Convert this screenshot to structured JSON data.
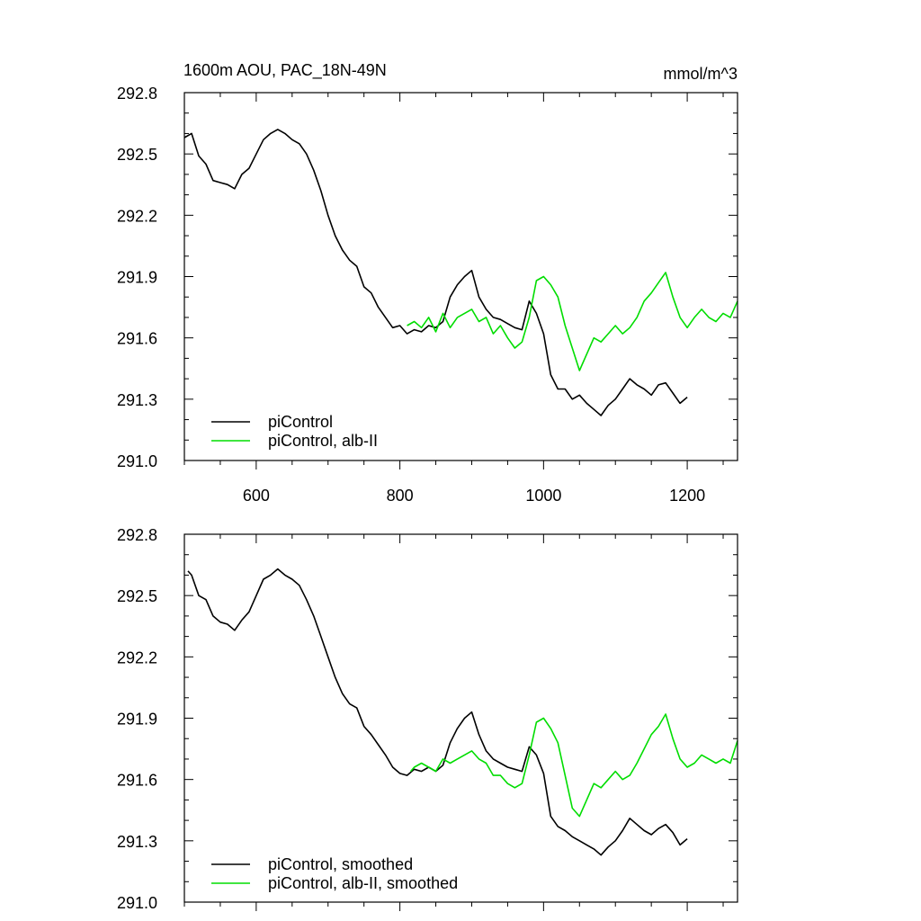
{
  "chart_data": [
    {
      "type": "line",
      "title": "1600m AOU, PAC_18N-49N",
      "units": "mmol/m^3",
      "xlim": [
        500,
        1270
      ],
      "ylim": [
        291.0,
        292.8
      ],
      "xticks": [
        600,
        800,
        1000,
        1200
      ],
      "xtick_labels": [
        "600",
        "800",
        "1000",
        "1200"
      ],
      "yticks": [
        291.0,
        291.3,
        291.6,
        291.9,
        292.2,
        292.5,
        292.8
      ],
      "ytick_labels": [
        "291.0",
        "291.3",
        "291.6",
        "291.9",
        "292.2",
        "292.5",
        "292.8"
      ],
      "legend": {
        "position": "bottom-left",
        "entries": [
          "piControl",
          "piControl, alb-II"
        ]
      },
      "series": [
        {
          "name": "piControl",
          "color": "#000000",
          "x": [
            500,
            510,
            520,
            530,
            540,
            550,
            560,
            570,
            580,
            590,
            600,
            610,
            620,
            630,
            640,
            650,
            660,
            670,
            680,
            690,
            700,
            710,
            720,
            730,
            740,
            750,
            760,
            770,
            780,
            790,
            800,
            810,
            820,
            830,
            840,
            850,
            860,
            870,
            880,
            890,
            900,
            910,
            920,
            930,
            940,
            950,
            960,
            970,
            980,
            990,
            1000,
            1010,
            1020,
            1030,
            1040,
            1050,
            1060,
            1070,
            1080,
            1090,
            1100,
            1110,
            1120,
            1130,
            1140,
            1150,
            1160,
            1170,
            1180,
            1190,
            1200
          ],
          "values": [
            292.58,
            292.6,
            292.49,
            292.45,
            292.37,
            292.36,
            292.35,
            292.33,
            292.4,
            292.43,
            292.5,
            292.57,
            292.6,
            292.62,
            292.6,
            292.57,
            292.55,
            292.5,
            292.42,
            292.32,
            292.2,
            292.1,
            292.03,
            291.98,
            291.95,
            291.85,
            291.82,
            291.75,
            291.7,
            291.65,
            291.66,
            291.62,
            291.64,
            291.63,
            291.66,
            291.65,
            291.68,
            291.8,
            291.86,
            291.9,
            291.93,
            291.8,
            291.74,
            291.7,
            291.69,
            291.67,
            291.65,
            291.64,
            291.78,
            291.72,
            291.62,
            291.42,
            291.35,
            291.35,
            291.3,
            291.32,
            291.28,
            291.25,
            291.22,
            291.27,
            291.3,
            291.35,
            291.4,
            291.37,
            291.35,
            291.32,
            291.37,
            291.38,
            291.33,
            291.28,
            291.31
          ]
        },
        {
          "name": "piControl, alb-II",
          "color": "#00dd00",
          "x": [
            810,
            820,
            830,
            840,
            850,
            860,
            870,
            880,
            890,
            900,
            910,
            920,
            930,
            940,
            950,
            960,
            970,
            980,
            990,
            1000,
            1010,
            1020,
            1030,
            1040,
            1050,
            1060,
            1070,
            1080,
            1090,
            1100,
            1110,
            1120,
            1130,
            1140,
            1150,
            1160,
            1170,
            1180,
            1190,
            1200,
            1210,
            1220,
            1230,
            1240,
            1250,
            1260,
            1270
          ],
          "values": [
            291.66,
            291.68,
            291.65,
            291.7,
            291.63,
            291.72,
            291.65,
            291.7,
            291.72,
            291.74,
            291.68,
            291.7,
            291.62,
            291.66,
            291.6,
            291.55,
            291.58,
            291.7,
            291.88,
            291.9,
            291.86,
            291.8,
            291.66,
            291.55,
            291.44,
            291.52,
            291.6,
            291.58,
            291.62,
            291.66,
            291.62,
            291.65,
            291.7,
            291.78,
            291.82,
            291.87,
            291.92,
            291.8,
            291.7,
            291.65,
            291.7,
            291.74,
            291.7,
            291.68,
            291.72,
            291.7,
            291.78
          ]
        }
      ]
    },
    {
      "type": "line",
      "xlim": [
        500,
        1270
      ],
      "ylim": [
        291.0,
        292.8
      ],
      "xticks": [
        600,
        800,
        1000,
        1200
      ],
      "yticks": [
        291.0,
        291.3,
        291.6,
        291.9,
        292.2,
        292.5,
        292.8
      ],
      "ytick_labels": [
        "291.0",
        "291.3",
        "291.6",
        "291.9",
        "292.2",
        "292.5",
        "292.8"
      ],
      "legend": {
        "position": "bottom-left",
        "entries": [
          "piControl, smoothed",
          "piControl, alb-II, smoothed"
        ]
      },
      "series": [
        {
          "name": "piControl, smoothed",
          "color": "#000000",
          "x": [
            505,
            510,
            520,
            530,
            540,
            550,
            560,
            570,
            580,
            590,
            600,
            610,
            620,
            630,
            640,
            650,
            660,
            670,
            680,
            690,
            700,
            710,
            720,
            730,
            740,
            750,
            760,
            770,
            780,
            790,
            800,
            810,
            820,
            830,
            840,
            850,
            860,
            870,
            880,
            890,
            900,
            910,
            920,
            930,
            940,
            950,
            960,
            970,
            980,
            990,
            1000,
            1010,
            1020,
            1030,
            1040,
            1050,
            1060,
            1070,
            1080,
            1090,
            1100,
            1110,
            1120,
            1130,
            1140,
            1150,
            1160,
            1170,
            1180,
            1190,
            1200
          ],
          "values": [
            292.62,
            292.6,
            292.5,
            292.48,
            292.4,
            292.37,
            292.36,
            292.33,
            292.38,
            292.42,
            292.5,
            292.58,
            292.6,
            292.63,
            292.6,
            292.58,
            292.55,
            292.48,
            292.4,
            292.3,
            292.2,
            292.1,
            292.02,
            291.97,
            291.95,
            291.86,
            291.82,
            291.77,
            291.72,
            291.66,
            291.63,
            291.62,
            291.65,
            291.64,
            291.66,
            291.64,
            291.67,
            291.78,
            291.85,
            291.9,
            291.93,
            291.82,
            291.74,
            291.7,
            291.68,
            291.66,
            291.65,
            291.64,
            291.76,
            291.72,
            291.63,
            291.42,
            291.37,
            291.35,
            291.32,
            291.3,
            291.28,
            291.26,
            291.23,
            291.27,
            291.3,
            291.35,
            291.41,
            291.38,
            291.35,
            291.33,
            291.36,
            291.38,
            291.34,
            291.28,
            291.31
          ]
        },
        {
          "name": "piControl, alb-II, smoothed",
          "color": "#00dd00",
          "x": [
            815,
            820,
            830,
            840,
            850,
            860,
            870,
            880,
            890,
            900,
            910,
            920,
            930,
            940,
            950,
            960,
            970,
            980,
            990,
            1000,
            1010,
            1020,
            1030,
            1040,
            1050,
            1060,
            1070,
            1080,
            1090,
            1100,
            1110,
            1120,
            1130,
            1140,
            1150,
            1160,
            1170,
            1180,
            1190,
            1200,
            1210,
            1220,
            1230,
            1240,
            1250,
            1260,
            1270
          ],
          "values": [
            291.64,
            291.66,
            291.68,
            291.66,
            291.64,
            291.7,
            291.68,
            291.7,
            291.72,
            291.74,
            291.7,
            291.68,
            291.62,
            291.62,
            291.58,
            291.56,
            291.58,
            291.72,
            291.88,
            291.9,
            291.85,
            291.78,
            291.62,
            291.46,
            291.42,
            291.5,
            291.58,
            291.56,
            291.6,
            291.64,
            291.6,
            291.62,
            291.68,
            291.75,
            291.82,
            291.86,
            291.92,
            291.8,
            291.7,
            291.66,
            291.68,
            291.72,
            291.7,
            291.68,
            291.7,
            291.68,
            291.79
          ]
        }
      ]
    }
  ]
}
